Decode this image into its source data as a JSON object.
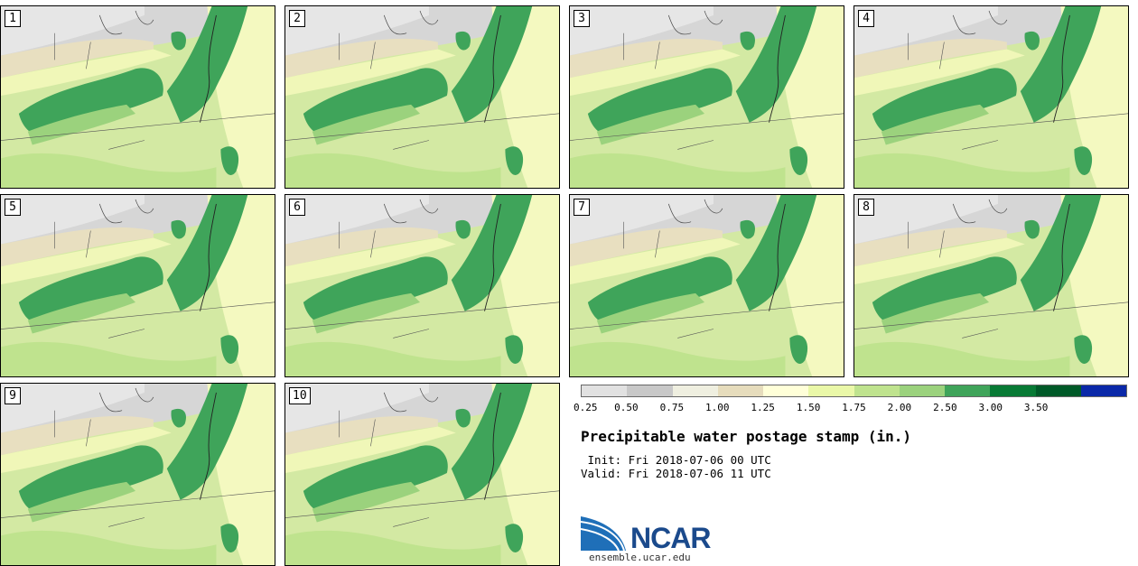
{
  "panels": [
    {
      "label": "1"
    },
    {
      "label": "2"
    },
    {
      "label": "3"
    },
    {
      "label": "4"
    },
    {
      "label": "5"
    },
    {
      "label": "6"
    },
    {
      "label": "7"
    },
    {
      "label": "8"
    },
    {
      "label": "9"
    },
    {
      "label": "10"
    }
  ],
  "colorbar": {
    "colors": [
      "#e1e1e1",
      "#c8c8c8",
      "#efefe0",
      "#e6dcbc",
      "#ffffd8",
      "#eaf8a8",
      "#bfe38e",
      "#9bd27d",
      "#3fa45a",
      "#087a35",
      "#005a28",
      "#0a28a8"
    ],
    "ticks": [
      "0.25",
      "0.50",
      "0.75",
      "1.00",
      "1.25",
      "1.50",
      "1.75",
      "2.00",
      "2.50",
      "3.00",
      "3.50"
    ]
  },
  "title": "Precipitable water postage stamp (in.)",
  "init_line": " Init: Fri 2018-07-06 00 UTC",
  "valid_line": "Valid: Fri 2018-07-06 11 UTC",
  "logo_text": "NCAR",
  "website": "ensemble.ucar.edu"
}
